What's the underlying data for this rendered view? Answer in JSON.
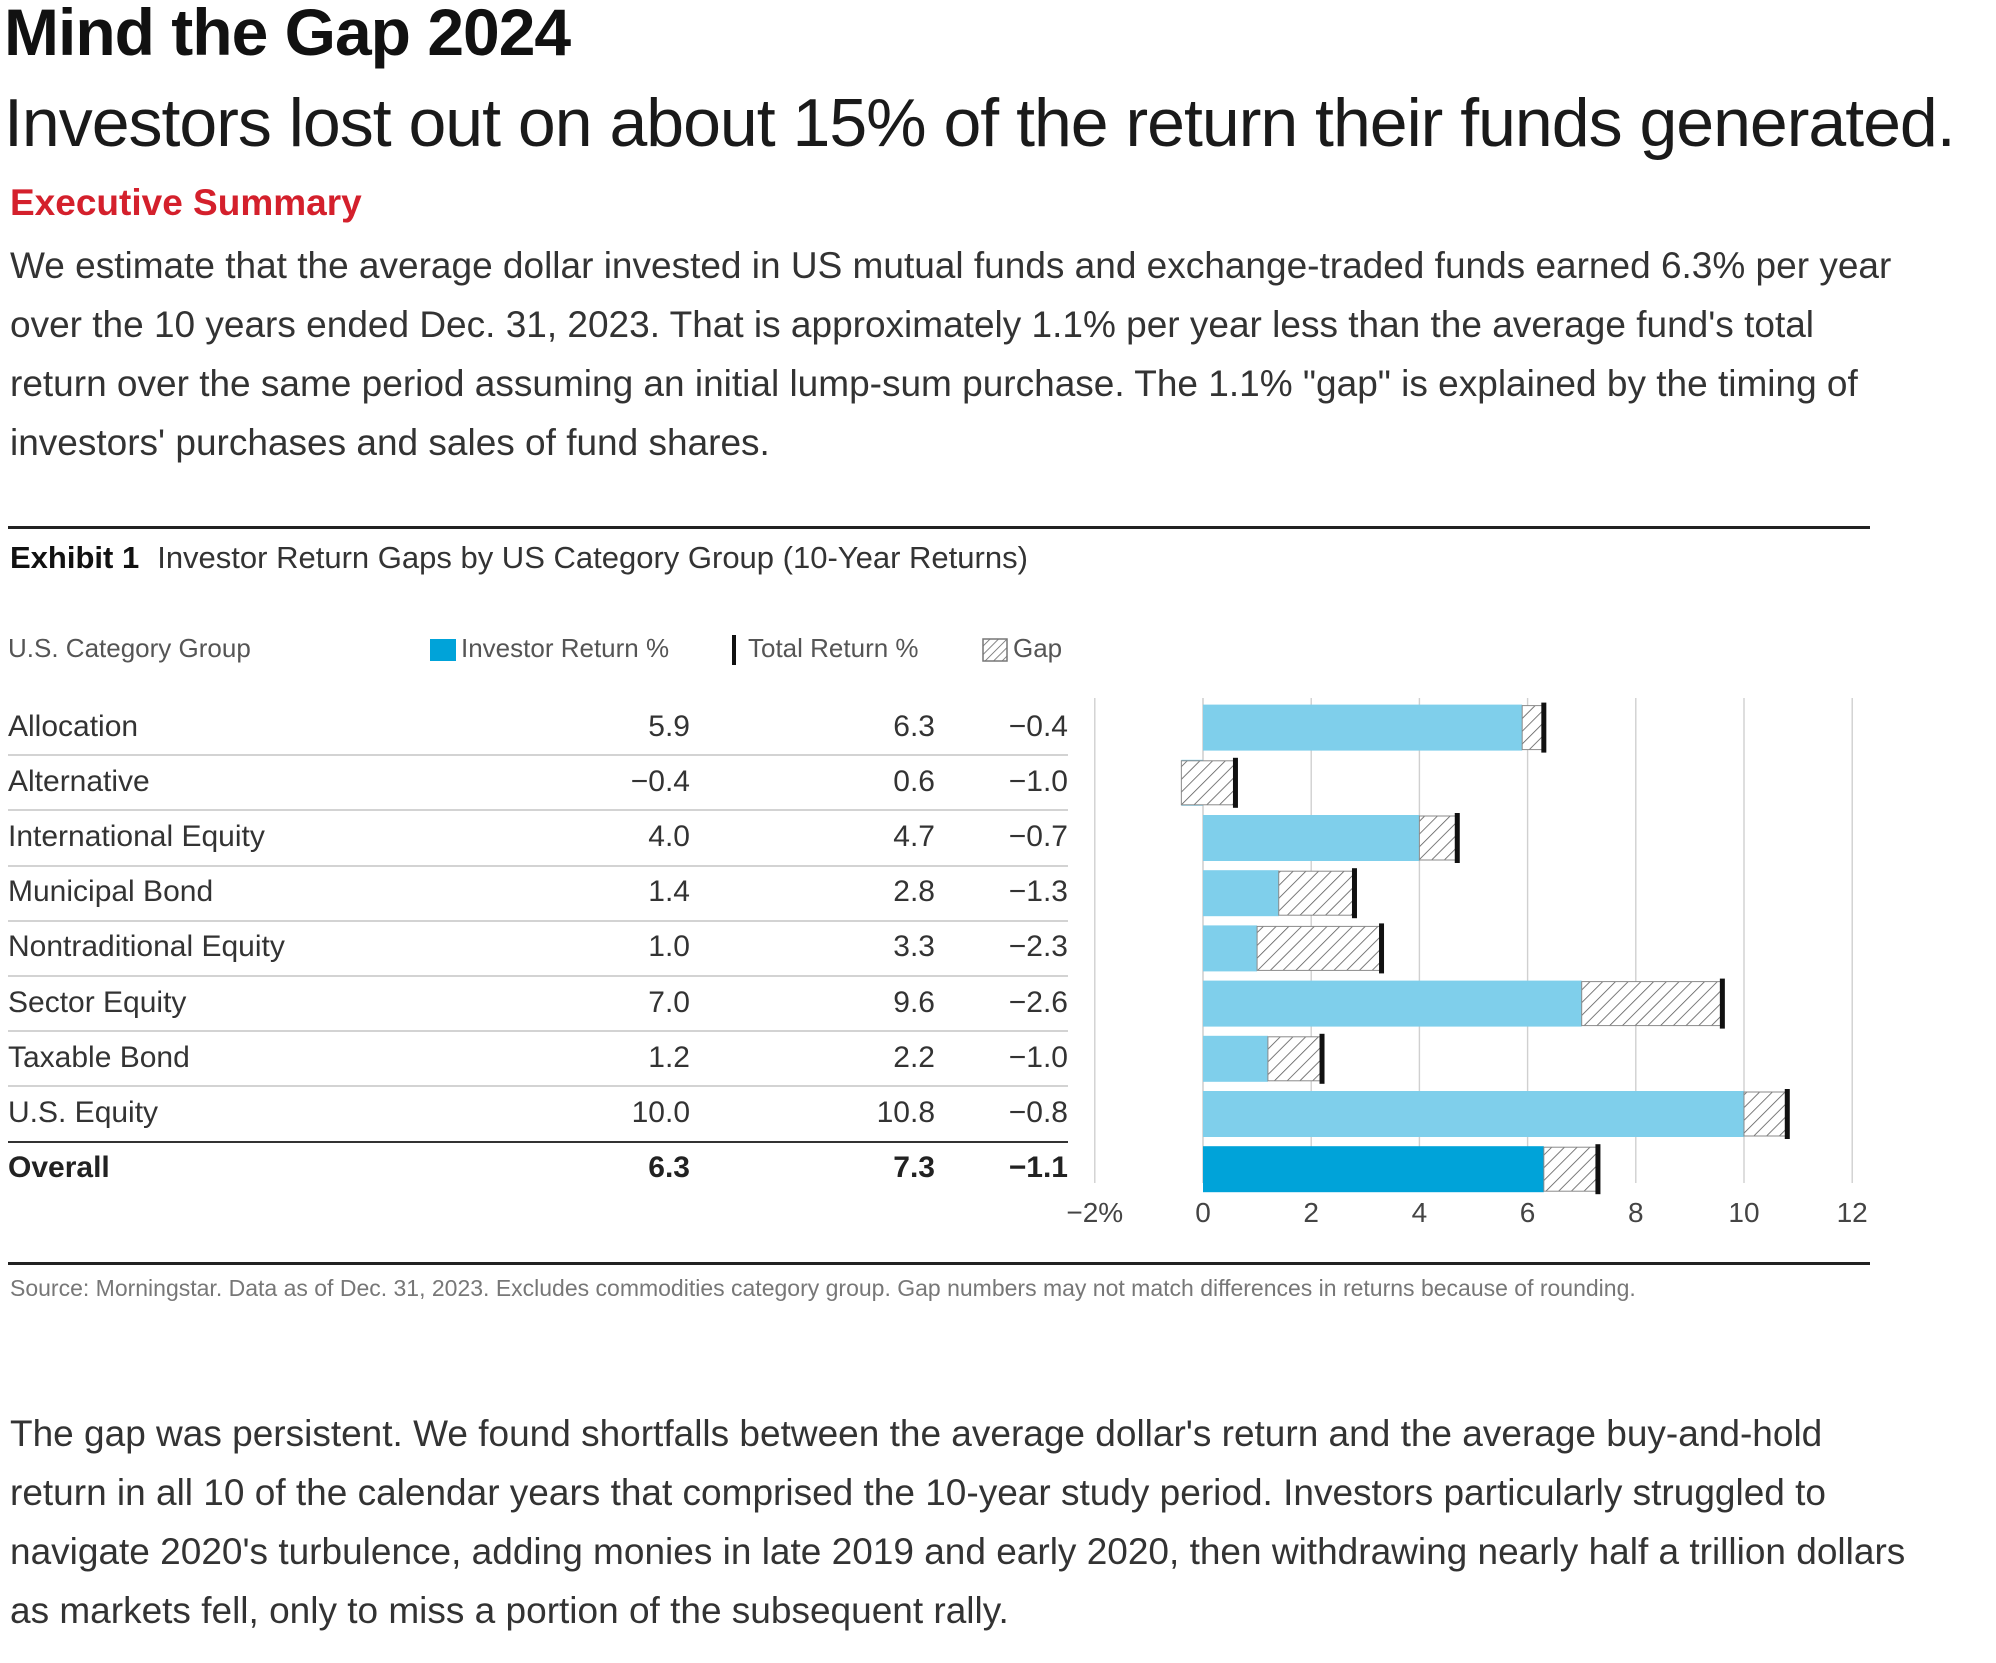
{
  "header": {
    "title": "Mind the Gap 2024",
    "subtitle": "Investors lost out on about 15% of the return their funds generated."
  },
  "executive_summary": {
    "heading": "Executive Summary",
    "text": "We estimate that the average dollar invested in US mutual funds and exchange-traded funds earned 6.3% per year over the 10 years ended Dec. 31, 2023. That is approximately 1.1% per year less than the average fund's total return over the same period assuming an initial lump-sum purchase. The 1.1% \"gap\" is explained by the timing of investors' purchases and sales of fund shares."
  },
  "exhibit": {
    "label": "Exhibit 1",
    "title": "Investor Return Gaps by US Category Group (10-Year Returns)",
    "source": "Source: Morningstar. Data as of Dec. 31, 2023. Excludes commodities category group. Gap numbers may not match differences in returns because of rounding."
  },
  "chart_data": {
    "type": "bar",
    "orientation": "horizontal",
    "column_headers": {
      "category": "U.S. Category Group",
      "investor_return": "Investor Return %",
      "total_return": "Total Return %",
      "gap": "Gap"
    },
    "categories": [
      "Allocation",
      "Alternative",
      "International Equity",
      "Municipal Bond",
      "Nontraditional Equity",
      "Sector Equity",
      "Taxable Bond",
      "U.S. Equity",
      "Overall"
    ],
    "series": [
      {
        "name": "Investor Return %",
        "values": [
          5.9,
          -0.4,
          4.0,
          1.4,
          1.0,
          7.0,
          1.2,
          10.0,
          6.3
        ],
        "labels": [
          "5.9",
          "−0.4",
          "4.0",
          "1.4",
          "1.0",
          "7.0",
          "1.2",
          "10.0",
          "6.3"
        ]
      },
      {
        "name": "Total Return %",
        "values": [
          6.3,
          0.6,
          4.7,
          2.8,
          3.3,
          9.6,
          2.2,
          10.8,
          7.3
        ],
        "labels": [
          "6.3",
          "0.6",
          "4.7",
          "2.8",
          "3.3",
          "9.6",
          "2.2",
          "10.8",
          "7.3"
        ]
      },
      {
        "name": "Gap",
        "values": [
          -0.4,
          -1.0,
          -0.7,
          -1.3,
          -2.3,
          -2.6,
          -1.0,
          -0.8,
          -1.1
        ],
        "labels": [
          "−0.4",
          "−1.0",
          "−0.7",
          "−1.3",
          "−2.3",
          "−2.6",
          "−1.0",
          "−0.8",
          "−1.1"
        ]
      }
    ],
    "xlim": [
      -2,
      12
    ],
    "x_ticks": [
      -2,
      0,
      2,
      4,
      6,
      8,
      10,
      12
    ],
    "x_tick_labels": [
      "−2%",
      "0",
      "2",
      "4",
      "6",
      "8",
      "10",
      "12"
    ],
    "grid": true,
    "highlight_category": "Overall",
    "colors": {
      "investor_bar": "#7fcfeb",
      "investor_bar_overall": "#00a3d9",
      "total_marker": "#111111",
      "gap_hatch": "#555555",
      "grid": "#d0d0d0"
    }
  },
  "body": {
    "text": "The gap was persistent. We found shortfalls between the average dollar's return and the average buy-and-hold return in all 10 of the calendar years that comprised the 10-year study period. Investors particularly struggled to navigate 2020's turbulence, adding monies in late 2019 and early 2020, then withdrawing nearly half a trillion dollars as markets fell, only to miss a portion of the subsequent rally."
  }
}
